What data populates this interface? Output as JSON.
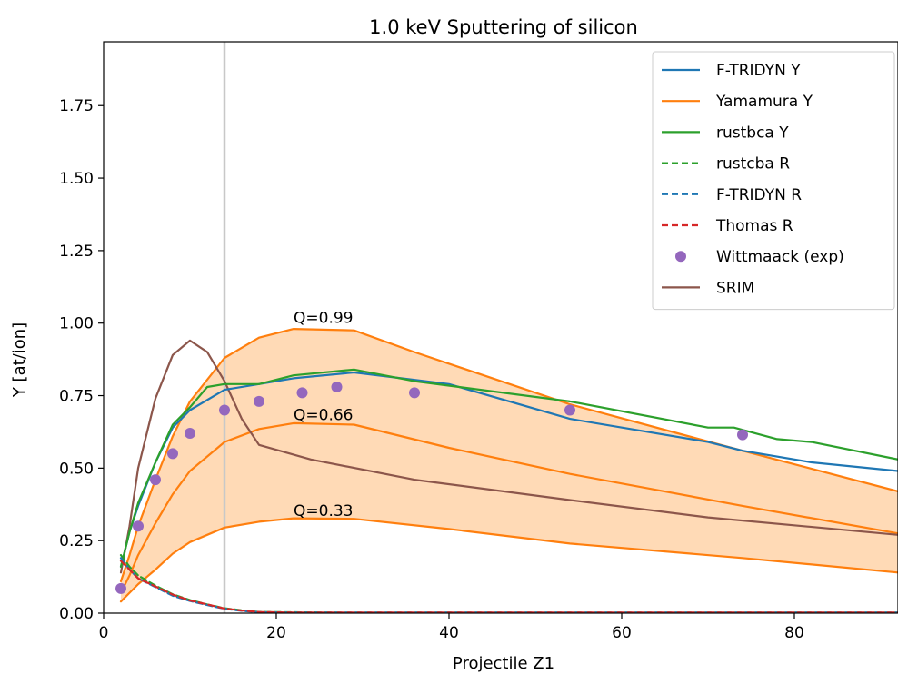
{
  "chart_data": {
    "type": "line",
    "title": "1.0 keV Sputtering of silicon",
    "xlabel": "Projectile Z1",
    "ylabel": "Y [at/ion]",
    "xlim": [
      0,
      92
    ],
    "ylim": [
      0,
      1.97
    ],
    "xticks": [
      "0",
      "20",
      "40",
      "60",
      "80"
    ],
    "yticks": [
      "0.00",
      "0.25",
      "0.50",
      "0.75",
      "1.00",
      "1.25",
      "1.50",
      "1.75"
    ],
    "grid": false,
    "legend_position": "top-right",
    "vline": {
      "x": 14,
      "color": "#c8c8c8"
    },
    "band": {
      "color": "#ffdab6",
      "lower_series": "Q=0.33",
      "upper_series": "Q=0.99"
    },
    "annotations": [
      {
        "text": "Q=0.99",
        "x": 22,
        "y": 1.0
      },
      {
        "text": "Q=0.66",
        "x": 22,
        "y": 0.665
      },
      {
        "text": "Q=0.33",
        "x": 22,
        "y": 0.335
      }
    ],
    "series": [
      {
        "name": "F-TRIDYN Y",
        "color": "#1f77b4",
        "style": "solid",
        "legend": true,
        "x": [
          2,
          3,
          4,
          6,
          8,
          10,
          14,
          18,
          22,
          29,
          40,
          54,
          70,
          74,
          82,
          92
        ],
        "y": [
          0.16,
          0.28,
          0.37,
          0.52,
          0.64,
          0.7,
          0.77,
          0.79,
          0.81,
          0.83,
          0.79,
          0.67,
          0.59,
          0.56,
          0.52,
          0.49
        ]
      },
      {
        "name": "Yamamura Y",
        "color": "#ff7f0e",
        "style": "solid",
        "legend": true,
        "x": [
          2,
          3,
          4,
          6,
          8,
          10,
          14,
          18,
          22,
          29,
          36,
          54,
          74,
          92
        ],
        "y": [
          0.11,
          0.2,
          0.3,
          0.46,
          0.61,
          0.73,
          0.88,
          0.95,
          0.98,
          0.975,
          0.9,
          0.72,
          0.56,
          0.42
        ]
      },
      {
        "name": "rustbca Y",
        "color": "#2ca02c",
        "style": "solid",
        "legend": true,
        "x": [
          2,
          3,
          4,
          6,
          8,
          10,
          12,
          14,
          18,
          22,
          29,
          36,
          54,
          70,
          73,
          78,
          82,
          92
        ],
        "y": [
          0.16,
          0.28,
          0.38,
          0.52,
          0.65,
          0.71,
          0.78,
          0.79,
          0.79,
          0.82,
          0.84,
          0.8,
          0.73,
          0.64,
          0.64,
          0.6,
          0.59,
          0.53
        ]
      },
      {
        "name": "rustcba R",
        "color": "#2ca02c",
        "style": "dashed",
        "legend": true,
        "x": [
          2,
          3,
          4,
          6,
          8,
          10,
          12,
          14,
          16,
          18,
          22,
          29,
          40,
          92
        ],
        "y": [
          0.2,
          0.16,
          0.13,
          0.095,
          0.065,
          0.045,
          0.03,
          0.017,
          0.01,
          0.004,
          0.003,
          0.002,
          0.002,
          0.002
        ]
      },
      {
        "name": "F-TRIDYN R",
        "color": "#1f77b4",
        "style": "dashed",
        "legend": true,
        "x": [
          2,
          3,
          4,
          6,
          8,
          10,
          12,
          14,
          16,
          18,
          22,
          29,
          40,
          92
        ],
        "y": [
          0.19,
          0.15,
          0.12,
          0.09,
          0.06,
          0.042,
          0.028,
          0.015,
          0.008,
          0.003,
          0.002,
          0.002,
          0.002,
          0.002
        ]
      },
      {
        "name": "Thomas R",
        "color": "#d62728",
        "style": "dashed",
        "legend": true,
        "x": [
          2,
          3,
          4,
          6,
          8,
          10,
          12,
          14,
          16,
          18,
          22,
          29,
          40,
          92
        ],
        "y": [
          0.18,
          0.15,
          0.12,
          0.092,
          0.064,
          0.044,
          0.03,
          0.016,
          0.009,
          0.004,
          0.002,
          0.002,
          0.002,
          0.002
        ]
      },
      {
        "name": "Wittmaack (exp)",
        "color": "#9467bd",
        "style": "markers",
        "legend": true,
        "x": [
          2,
          4,
          6,
          8,
          10,
          14,
          18,
          23,
          27,
          36,
          54,
          74
        ],
        "y": [
          0.085,
          0.3,
          0.46,
          0.55,
          0.62,
          0.7,
          0.73,
          0.76,
          0.78,
          0.76,
          0.7,
          0.615
        ]
      },
      {
        "name": "SRIM",
        "color": "#8c564b",
        "style": "solid",
        "legend": true,
        "x": [
          2,
          3,
          4,
          6,
          8,
          10,
          12,
          14,
          16,
          18,
          24,
          36,
          54,
          70,
          92
        ],
        "y": [
          0.14,
          0.3,
          0.5,
          0.74,
          0.89,
          0.94,
          0.9,
          0.8,
          0.67,
          0.58,
          0.53,
          0.46,
          0.39,
          0.33,
          0.27
        ]
      },
      {
        "name": "Q=0.66",
        "color": "#ff7f0e",
        "style": "solid",
        "legend": false,
        "x": [
          2,
          3,
          4,
          6,
          8,
          10,
          14,
          18,
          22,
          29,
          40,
          54,
          74,
          92
        ],
        "y": [
          0.07,
          0.13,
          0.2,
          0.31,
          0.41,
          0.49,
          0.59,
          0.635,
          0.655,
          0.65,
          0.57,
          0.48,
          0.37,
          0.275
        ]
      },
      {
        "name": "Q=0.33",
        "color": "#ff7f0e",
        "style": "solid",
        "legend": false,
        "x": [
          2,
          3,
          4,
          6,
          8,
          10,
          14,
          18,
          22,
          29,
          40,
          54,
          74,
          92
        ],
        "y": [
          0.04,
          0.07,
          0.1,
          0.15,
          0.205,
          0.245,
          0.295,
          0.315,
          0.327,
          0.325,
          0.29,
          0.24,
          0.19,
          0.14
        ]
      }
    ]
  }
}
